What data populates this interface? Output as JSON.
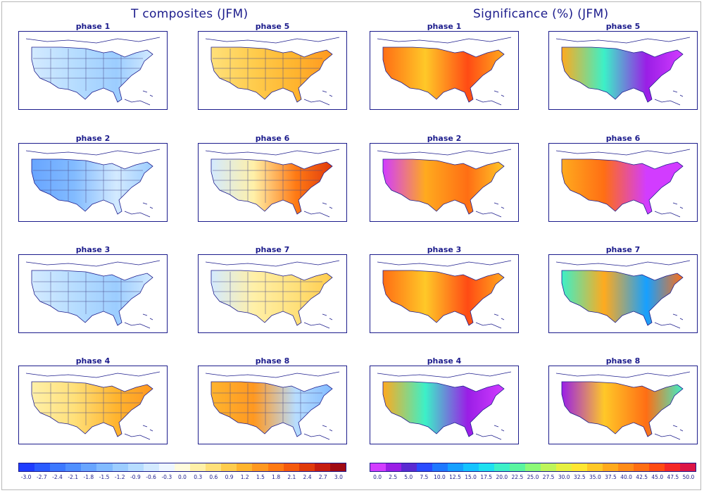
{
  "titles": {
    "left": "T composites (JFM)",
    "right": "Significance (%) (JFM)"
  },
  "panels": {
    "temperature": [
      {
        "label": "phase 1",
        "pattern": "cool-mild"
      },
      {
        "label": "phase 2",
        "pattern": "cool-strong"
      },
      {
        "label": "phase 3",
        "pattern": "cool-mild"
      },
      {
        "label": "phase 4",
        "pattern": "warm-east"
      },
      {
        "label": "phase 5",
        "pattern": "warm-all"
      },
      {
        "label": "phase 6",
        "pattern": "warm-east-strong"
      },
      {
        "label": "phase 7",
        "pattern": "warm-east-mild"
      },
      {
        "label": "phase 8",
        "pattern": "warm-north-cool-east"
      }
    ],
    "significance": [
      {
        "label": "phase 1",
        "pattern": "low-sig"
      },
      {
        "label": "phase 2",
        "pattern": "sig-west"
      },
      {
        "label": "phase 3",
        "pattern": "low-sig"
      },
      {
        "label": "phase 4",
        "pattern": "sig-southeast"
      },
      {
        "label": "phase 5",
        "pattern": "sig-southeast"
      },
      {
        "label": "phase 6",
        "pattern": "sig-east"
      },
      {
        "label": "phase 7",
        "pattern": "mixed"
      },
      {
        "label": "phase 8",
        "pattern": "sig-north"
      }
    ]
  },
  "colorbars": {
    "temperature": {
      "ticks": [
        "-3.0",
        "-2.7",
        "-2.4",
        "-2.1",
        "-1.8",
        "-1.5",
        "-1.2",
        "-0.9",
        "-0.6",
        "-0.3",
        "0.0",
        "0.3",
        "0.6",
        "0.9",
        "1.2",
        "1.5",
        "1.8",
        "2.1",
        "2.4",
        "2.7",
        "3.0"
      ],
      "colors": [
        "#1e3cff",
        "#2a5bff",
        "#3c78ff",
        "#4f8fff",
        "#68a5ff",
        "#82bbff",
        "#9ccdff",
        "#b7ddff",
        "#d3eaff",
        "#eef6ff",
        "#fffbdc",
        "#fff0a8",
        "#ffe07a",
        "#ffcc4d",
        "#ffb42e",
        "#ff9820",
        "#ff7a14",
        "#f55a0f",
        "#e03a0c",
        "#c61c10",
        "#a00a14"
      ]
    },
    "significance": {
      "ticks": [
        "0.0",
        "2.5",
        "5.0",
        "7.5",
        "10.0",
        "12.5",
        "15.0",
        "17.5",
        "20.0",
        "22.5",
        "25.0",
        "27.5",
        "30.0",
        "32.5",
        "35.0",
        "37.5",
        "40.0",
        "42.5",
        "45.0",
        "47.5",
        "50.0"
      ],
      "colors": [
        "#d23cff",
        "#9a1ee6",
        "#5a2ad2",
        "#2a4bff",
        "#1e78ff",
        "#16a0ff",
        "#14c3ff",
        "#1ee0f0",
        "#3cf0c8",
        "#5af5a0",
        "#8cfa78",
        "#bef55a",
        "#e6f041",
        "#ffe632",
        "#ffc828",
        "#ffaa1e",
        "#ff8c19",
        "#ff6e14",
        "#ff4b14",
        "#f52828",
        "#dc1446"
      ]
    }
  }
}
